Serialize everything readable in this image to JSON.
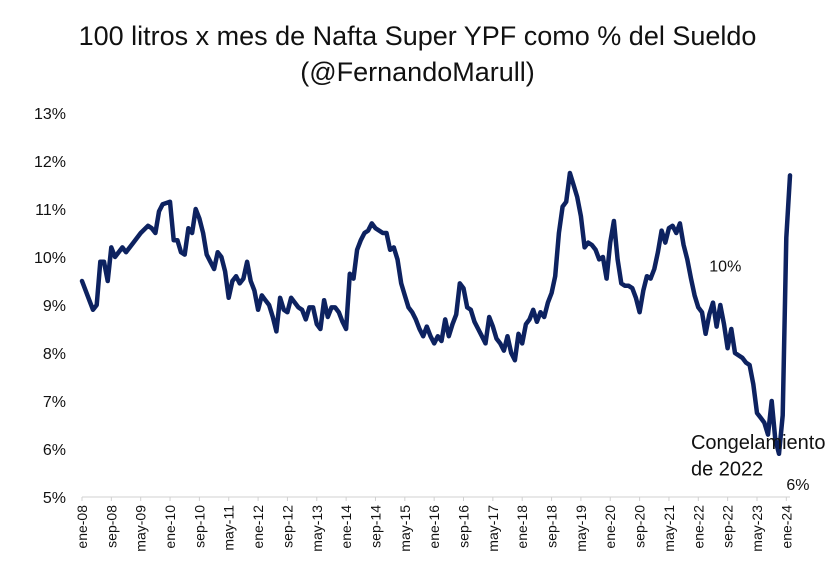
{
  "title_line1": "100 litros x mes de Nafta Super YPF como % del Sueldo",
  "title_line2": "(@FernandoMarull)",
  "chart_data": {
    "type": "line",
    "title": "100 litros x mes de Nafta Super YPF como % del Sueldo (@FernandoMarull)",
    "xlabel": "",
    "ylabel": "",
    "ylim": [
      5,
      13
    ],
    "y_unit": "%",
    "grid": false,
    "y_ticks": [
      "5%",
      "6%",
      "7%",
      "8%",
      "9%",
      "10%",
      "11%",
      "12%",
      "13%"
    ],
    "x_ticks": [
      "ene-08",
      "sep-08",
      "may-09",
      "ene-10",
      "sep-10",
      "may-11",
      "ene-12",
      "sep-12",
      "may-13",
      "ene-14",
      "sep-14",
      "may-15",
      "ene-16",
      "sep-16",
      "may-17",
      "ene-18",
      "sep-18",
      "may-19",
      "ene-20",
      "sep-20",
      "may-21",
      "ene-22",
      "sep-22",
      "may-23",
      "ene-24"
    ],
    "series": [
      {
        "name": "",
        "color": "#0d2260",
        "points": [
          [
            "2008-01",
            9.5
          ],
          [
            "2008-03",
            9.1
          ],
          [
            "2008-04",
            8.9
          ],
          [
            "2008-05",
            9.0
          ],
          [
            "2008-06",
            9.9
          ],
          [
            "2008-07",
            9.9
          ],
          [
            "2008-08",
            9.5
          ],
          [
            "2008-09",
            10.2
          ],
          [
            "2008-10",
            10.0
          ],
          [
            "2008-12",
            10.2
          ],
          [
            "2009-01",
            10.1
          ],
          [
            "2009-03",
            10.3
          ],
          [
            "2009-05",
            10.5
          ],
          [
            "2009-07",
            10.65
          ],
          [
            "2009-08",
            10.6
          ],
          [
            "2009-09",
            10.5
          ],
          [
            "2009-10",
            10.95
          ],
          [
            "2009-11",
            11.1
          ],
          [
            "2010-01",
            11.15
          ],
          [
            "2010-02",
            10.35
          ],
          [
            "2010-03",
            10.35
          ],
          [
            "2010-04",
            10.1
          ],
          [
            "2010-05",
            10.05
          ],
          [
            "2010-06",
            10.6
          ],
          [
            "2010-07",
            10.5
          ],
          [
            "2010-08",
            11.0
          ],
          [
            "2010-09",
            10.8
          ],
          [
            "2010-10",
            10.5
          ],
          [
            "2010-11",
            10.05
          ],
          [
            "2010-12",
            9.9
          ],
          [
            "2011-01",
            9.75
          ],
          [
            "2011-02",
            10.1
          ],
          [
            "2011-03",
            10.0
          ],
          [
            "2011-04",
            9.7
          ],
          [
            "2011-05",
            9.15
          ],
          [
            "2011-06",
            9.5
          ],
          [
            "2011-07",
            9.6
          ],
          [
            "2011-08",
            9.45
          ],
          [
            "2011-09",
            9.55
          ],
          [
            "2011-10",
            9.9
          ],
          [
            "2011-11",
            9.5
          ],
          [
            "2011-12",
            9.3
          ],
          [
            "2012-01",
            8.9
          ],
          [
            "2012-02",
            9.2
          ],
          [
            "2012-03",
            9.1
          ],
          [
            "2012-04",
            9.0
          ],
          [
            "2012-05",
            8.75
          ],
          [
            "2012-06",
            8.45
          ],
          [
            "2012-07",
            9.15
          ],
          [
            "2012-08",
            8.9
          ],
          [
            "2012-09",
            8.85
          ],
          [
            "2012-10",
            9.15
          ],
          [
            "2012-11",
            9.05
          ],
          [
            "2012-12",
            8.95
          ],
          [
            "2013-01",
            8.9
          ],
          [
            "2013-02",
            8.7
          ],
          [
            "2013-03",
            8.95
          ],
          [
            "2013-04",
            8.95
          ],
          [
            "2013-05",
            8.6
          ],
          [
            "2013-06",
            8.5
          ],
          [
            "2013-07",
            9.1
          ],
          [
            "2013-08",
            8.75
          ],
          [
            "2013-09",
            8.95
          ],
          [
            "2013-10",
            8.95
          ],
          [
            "2013-11",
            8.85
          ],
          [
            "2013-12",
            8.65
          ],
          [
            "2014-01",
            8.5
          ],
          [
            "2014-02",
            9.65
          ],
          [
            "2014-03",
            9.55
          ],
          [
            "2014-04",
            10.15
          ],
          [
            "2014-05",
            10.35
          ],
          [
            "2014-06",
            10.5
          ],
          [
            "2014-07",
            10.55
          ],
          [
            "2014-08",
            10.7
          ],
          [
            "2014-09",
            10.6
          ],
          [
            "2014-11",
            10.5
          ],
          [
            "2014-12",
            10.5
          ],
          [
            "2015-01",
            10.15
          ],
          [
            "2015-02",
            10.2
          ],
          [
            "2015-03",
            9.95
          ],
          [
            "2015-04",
            9.45
          ],
          [
            "2015-05",
            9.2
          ],
          [
            "2015-06",
            8.95
          ],
          [
            "2015-07",
            8.85
          ],
          [
            "2015-08",
            8.7
          ],
          [
            "2015-09",
            8.5
          ],
          [
            "2015-10",
            8.35
          ],
          [
            "2015-11",
            8.55
          ],
          [
            "2015-12",
            8.35
          ],
          [
            "2016-01",
            8.2
          ],
          [
            "2016-02",
            8.35
          ],
          [
            "2016-03",
            8.25
          ],
          [
            "2016-04",
            8.7
          ],
          [
            "2016-05",
            8.35
          ],
          [
            "2016-06",
            8.6
          ],
          [
            "2016-07",
            8.8
          ],
          [
            "2016-08",
            9.45
          ],
          [
            "2016-09",
            9.35
          ],
          [
            "2016-10",
            8.95
          ],
          [
            "2016-11",
            8.9
          ],
          [
            "2016-12",
            8.65
          ],
          [
            "2017-01",
            8.5
          ],
          [
            "2017-02",
            8.35
          ],
          [
            "2017-03",
            8.2
          ],
          [
            "2017-04",
            8.75
          ],
          [
            "2017-05",
            8.55
          ],
          [
            "2017-06",
            8.3
          ],
          [
            "2017-07",
            8.2
          ],
          [
            "2017-08",
            8.05
          ],
          [
            "2017-09",
            8.35
          ],
          [
            "2017-10",
            8.0
          ],
          [
            "2017-11",
            7.85
          ],
          [
            "2017-12",
            8.4
          ],
          [
            "2018-01",
            8.2
          ],
          [
            "2018-02",
            8.6
          ],
          [
            "2018-03",
            8.7
          ],
          [
            "2018-04",
            8.9
          ],
          [
            "2018-05",
            8.65
          ],
          [
            "2018-06",
            8.85
          ],
          [
            "2018-07",
            8.75
          ],
          [
            "2018-08",
            9.05
          ],
          [
            "2018-09",
            9.25
          ],
          [
            "2018-10",
            9.6
          ],
          [
            "2018-11",
            10.5
          ],
          [
            "2018-12",
            11.05
          ],
          [
            "2019-01",
            11.15
          ],
          [
            "2019-02",
            11.75
          ],
          [
            "2019-03",
            11.5
          ],
          [
            "2019-04",
            11.25
          ],
          [
            "2019-05",
            10.85
          ],
          [
            "2019-06",
            10.2
          ],
          [
            "2019-07",
            10.3
          ],
          [
            "2019-08",
            10.25
          ],
          [
            "2019-09",
            10.15
          ],
          [
            "2019-10",
            9.95
          ],
          [
            "2019-11",
            10.0
          ],
          [
            "2019-12",
            9.55
          ],
          [
            "2020-01",
            10.3
          ],
          [
            "2020-02",
            10.75
          ],
          [
            "2020-03",
            9.95
          ],
          [
            "2020-04",
            9.45
          ],
          [
            "2020-05",
            9.4
          ],
          [
            "2020-06",
            9.4
          ],
          [
            "2020-07",
            9.35
          ],
          [
            "2020-08",
            9.15
          ],
          [
            "2020-09",
            8.85
          ],
          [
            "2020-10",
            9.3
          ],
          [
            "2020-11",
            9.6
          ],
          [
            "2020-12",
            9.55
          ],
          [
            "2021-01",
            9.75
          ],
          [
            "2021-02",
            10.1
          ],
          [
            "2021-03",
            10.55
          ],
          [
            "2021-04",
            10.3
          ],
          [
            "2021-05",
            10.6
          ],
          [
            "2021-06",
            10.65
          ],
          [
            "2021-07",
            10.5
          ],
          [
            "2021-08",
            10.7
          ],
          [
            "2021-09",
            10.25
          ],
          [
            "2021-10",
            9.95
          ],
          [
            "2021-11",
            9.55
          ],
          [
            "2021-12",
            9.2
          ],
          [
            "2022-01",
            8.95
          ],
          [
            "2022-02",
            8.85
          ],
          [
            "2022-03",
            8.4
          ],
          [
            "2022-04",
            8.8
          ],
          [
            "2022-05",
            9.05
          ],
          [
            "2022-06",
            8.55
          ],
          [
            "2022-07",
            9.0
          ],
          [
            "2022-08",
            8.6
          ],
          [
            "2022-09",
            8.1
          ],
          [
            "2022-10",
            8.5
          ],
          [
            "2022-11",
            8.0
          ],
          [
            "2022-12",
            7.95
          ],
          [
            "2023-01",
            7.9
          ],
          [
            "2023-02",
            7.8
          ],
          [
            "2023-03",
            7.75
          ],
          [
            "2023-04",
            7.35
          ],
          [
            "2023-05",
            6.75
          ],
          [
            "2023-06",
            6.65
          ],
          [
            "2023-07",
            6.55
          ],
          [
            "2023-08",
            6.3
          ],
          [
            "2023-09",
            7.0
          ],
          [
            "2023-10",
            6.2
          ],
          [
            "2023-11",
            5.9
          ],
          [
            "2023-12",
            6.7
          ],
          [
            "2024-01",
            10.4
          ],
          [
            "2024-02",
            11.7
          ]
        ]
      }
    ],
    "annotations": [
      {
        "text": "10%",
        "x": "2022-04",
        "y": 9.7
      },
      {
        "text": "Congelamiento",
        "x": "2021-11",
        "y": 6.0
      },
      {
        "text": "de 2022",
        "x": "2021-11",
        "y": 5.45
      },
      {
        "text": "6%",
        "x": "2024-01",
        "y": 5.15
      }
    ]
  }
}
